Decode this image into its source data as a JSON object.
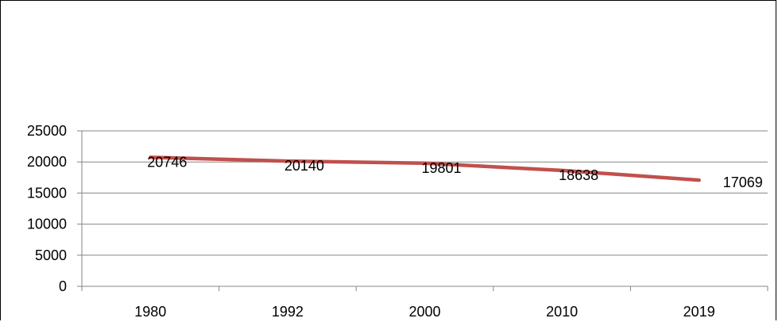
{
  "chart_data": {
    "type": "line",
    "categories": [
      "1980",
      "1992",
      "2000",
      "2010",
      "2019"
    ],
    "series": [
      {
        "values": [
          20746,
          20140,
          19801,
          18638,
          17069
        ],
        "color": "#c0504d"
      }
    ],
    "y_ticks": [
      "0",
      "5000",
      "10000",
      "15000",
      "20000",
      "25000"
    ],
    "data_labels": [
      "20746",
      "20140",
      "19801",
      "18638",
      "17069"
    ],
    "ylim": [
      0,
      25000
    ],
    "grid": true,
    "legend": "none",
    "colors": {
      "gridline": "#868686",
      "axis": "#868686",
      "text": "#000000"
    }
  }
}
